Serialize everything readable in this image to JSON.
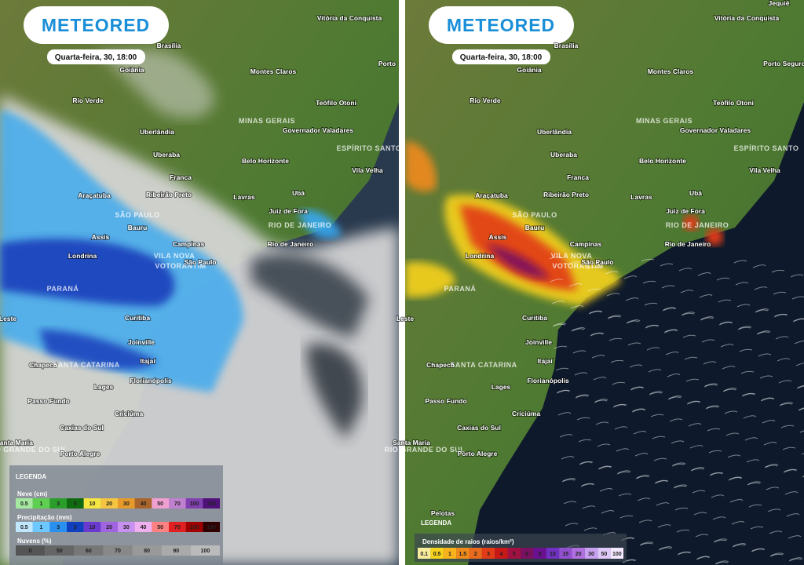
{
  "left_map": {
    "logo": "METEORED",
    "time": "Quarta-feira, 30, 18:00",
    "cities": [
      "Vitória da Conquista",
      "Brasília",
      "Goiânia",
      "Porto",
      "Montes Claros",
      "Rio Verde",
      "Teófilo Otoni",
      "MINAS GERAIS",
      "Governador Valadares",
      "Uberlândia",
      "ESPÍRITO SANTO",
      "Uberaba",
      "Belo Horizonte",
      "Vila Velha",
      "Franca",
      "Ribeirão Preto",
      "Araçatuba",
      "Lavras",
      "Ubá",
      "SÃO PAULO",
      "Juiz de Fora",
      "Bauru",
      "RIO DE JANEIRO",
      "Assis",
      "Campinas",
      "Rio de Janeiro",
      "Londrina",
      "VILA NOVA",
      "VOTORANTIM",
      "São Paulo",
      "PARANÁ",
      "Leste",
      "Curitiba",
      "Joinville",
      "Itajaí",
      "Chapecó",
      "SANTA CATARINA",
      "Florianópolis",
      "Lages",
      "Passo Fundo",
      "Criciúma",
      "Caxias do Sul",
      "Santa Maria",
      "RIO GRANDE DO SUL",
      "Porto Alegre"
    ],
    "legend": {
      "title": "LEGENDA",
      "snow": {
        "label": "Neve (cm)",
        "ticks": [
          "0.5",
          "1",
          "3",
          "5",
          "10",
          "20",
          "30",
          "40",
          "50",
          "70",
          "100",
          "150"
        ]
      },
      "rain": {
        "label": "Precipitação (mm)",
        "ticks": [
          "0.5",
          "1",
          "3",
          "5",
          "10",
          "20",
          "30",
          "40",
          "50",
          "70",
          "100",
          "150"
        ]
      },
      "clouds": {
        "label": "Nuvens (%)",
        "ticks": [
          "0",
          "50",
          "60",
          "70",
          "80",
          "90",
          "100"
        ]
      }
    }
  },
  "right_map": {
    "logo": "METEORED",
    "time": "Quarta-feira, 30, 18:00",
    "cities": [
      "Vitória da Conquista",
      "Brasília",
      "Goiânia",
      "Porto Seguro",
      "Montes Claros",
      "Rio Verde",
      "Teófilo Otoni",
      "MINAS GERAIS",
      "Governador Valadares",
      "Uberlândia",
      "ESPÍRITO SANTO",
      "Uberaba",
      "Belo Horizonte",
      "Vila Velha",
      "Franca",
      "Ribeirão Preto",
      "Araçatuba",
      "Lavras",
      "Ubá",
      "SÃO PAULO",
      "Juiz de Fora",
      "Bauru",
      "RIO DE JANEIRO",
      "Assis",
      "Campinas",
      "Rio de Janeiro",
      "Londrina",
      "VILA NOVA",
      "VOTORANTIM",
      "São Paulo",
      "PARANÁ",
      "Leste",
      "Curitiba",
      "Joinville",
      "Itajaí",
      "Chapecó",
      "SANTA CATARINA",
      "Florianópolis",
      "Lages",
      "Passo Fundo",
      "Criciúma",
      "Caxias do Sul",
      "Santa Maria",
      "RIO GRANDE DO SUL",
      "Porto Alegre",
      "Pelotas",
      "Jequié"
    ],
    "legend": {
      "title": "LEGENDA",
      "lightning": {
        "label": "Densidade de raios (raios/km²)",
        "ticks": [
          "0.1",
          "0.5",
          "1",
          "1.5",
          "2",
          "3",
          "4",
          "5",
          "6",
          "8",
          "10",
          "15",
          "20",
          "30",
          "50",
          "100"
        ]
      }
    }
  }
}
